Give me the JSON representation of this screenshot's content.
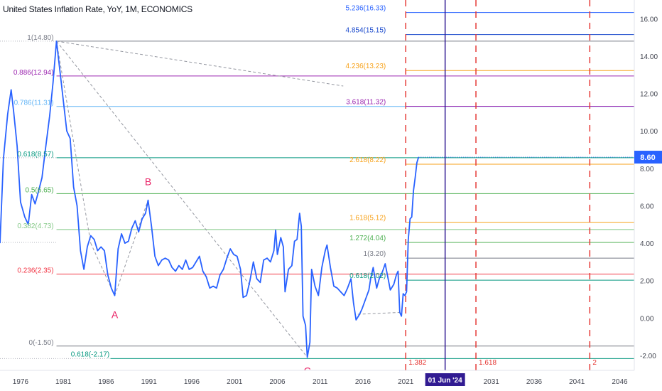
{
  "title": "United States Inflation Rate, YoY, 1M, ECONOMICS",
  "colors": {
    "series": "#2962ff",
    "axis_text": "#131722",
    "grid_text": "#434651",
    "dashed_red": "#e53935",
    "current_line": "#311b92",
    "price_badge_bg": "#2962ff",
    "date_badge_bg": "#311b92"
  },
  "current_price_label": "8.60",
  "current_date_label": "01 Jun '24",
  "chart_data": {
    "type": "line",
    "title": "United States Inflation Rate, YoY, 1M, ECONOMICS",
    "xlabel": "",
    "ylabel": "",
    "x_range": [
      1973.6,
      2047.7
    ],
    "y_range": [
      -2.8,
      17.0
    ],
    "x_ticks": [
      "1976",
      "1981",
      "1986",
      "1991",
      "1996",
      "2001",
      "2006",
      "2011",
      "2016",
      "2021",
      "2031",
      "2036",
      "2041",
      "2046"
    ],
    "y_ticks": [
      "16.00",
      "14.00",
      "12.00",
      "10.00",
      "8.00",
      "6.00",
      "4.00",
      "2.00",
      "0.00",
      "-2.00"
    ],
    "series": [
      {
        "values": [
          [
            1973.6,
            4.0
          ],
          [
            1974.0,
            8.5
          ],
          [
            1974.5,
            10.9
          ],
          [
            1974.9,
            12.2
          ],
          [
            1975.2,
            11.0
          ],
          [
            1975.6,
            9.2
          ],
          [
            1976.0,
            6.2
          ],
          [
            1976.5,
            5.4
          ],
          [
            1976.9,
            5.0
          ],
          [
            1977.3,
            6.6
          ],
          [
            1977.7,
            6.1
          ],
          [
            1978.0,
            6.6
          ],
          [
            1978.5,
            7.5
          ],
          [
            1978.9,
            9.0
          ],
          [
            1979.4,
            10.8
          ],
          [
            1979.8,
            12.6
          ],
          [
            1980.2,
            14.8
          ],
          [
            1980.7,
            12.8
          ],
          [
            1981.0,
            11.6
          ],
          [
            1981.4,
            10.0
          ],
          [
            1981.8,
            9.6
          ],
          [
            1982.2,
            7.0
          ],
          [
            1982.6,
            6.0
          ],
          [
            1983.0,
            3.6
          ],
          [
            1983.4,
            2.6
          ],
          [
            1983.8,
            3.8
          ],
          [
            1984.2,
            4.4
          ],
          [
            1984.6,
            4.2
          ],
          [
            1985.0,
            3.6
          ],
          [
            1985.4,
            3.8
          ],
          [
            1985.8,
            3.6
          ],
          [
            1986.2,
            2.3
          ],
          [
            1986.6,
            1.6
          ],
          [
            1987.0,
            1.2
          ],
          [
            1987.4,
            3.7
          ],
          [
            1987.8,
            4.5
          ],
          [
            1988.2,
            4.0
          ],
          [
            1988.6,
            4.1
          ],
          [
            1989.0,
            4.8
          ],
          [
            1989.4,
            5.2
          ],
          [
            1989.8,
            4.6
          ],
          [
            1990.2,
            5.3
          ],
          [
            1990.6,
            5.6
          ],
          [
            1990.9,
            6.3
          ],
          [
            1991.3,
            4.9
          ],
          [
            1991.7,
            3.3
          ],
          [
            1992.1,
            2.8
          ],
          [
            1992.5,
            3.1
          ],
          [
            1992.9,
            3.2
          ],
          [
            1993.3,
            3.1
          ],
          [
            1993.7,
            2.7
          ],
          [
            1994.1,
            2.5
          ],
          [
            1994.5,
            2.8
          ],
          [
            1994.9,
            2.6
          ],
          [
            1995.3,
            3.1
          ],
          [
            1995.7,
            2.6
          ],
          [
            1996.1,
            2.7
          ],
          [
            1996.5,
            3.0
          ],
          [
            1996.9,
            3.3
          ],
          [
            1997.3,
            2.5
          ],
          [
            1997.7,
            2.2
          ],
          [
            1998.1,
            1.6
          ],
          [
            1998.5,
            1.7
          ],
          [
            1998.9,
            1.6
          ],
          [
            1999.3,
            2.3
          ],
          [
            1999.7,
            2.6
          ],
          [
            2000.1,
            3.2
          ],
          [
            2000.5,
            3.7
          ],
          [
            2000.9,
            3.4
          ],
          [
            2001.3,
            3.3
          ],
          [
            2001.7,
            2.6
          ],
          [
            2002.0,
            1.1
          ],
          [
            2002.4,
            1.2
          ],
          [
            2002.8,
            2.0
          ],
          [
            2003.2,
            3.0
          ],
          [
            2003.6,
            2.1
          ],
          [
            2004.0,
            1.9
          ],
          [
            2004.4,
            3.1
          ],
          [
            2004.8,
            3.2
          ],
          [
            2005.2,
            3.0
          ],
          [
            2005.6,
            3.6
          ],
          [
            2005.8,
            4.7
          ],
          [
            2006.0,
            3.4
          ],
          [
            2006.4,
            4.3
          ],
          [
            2006.7,
            3.8
          ],
          [
            2006.9,
            1.4
          ],
          [
            2007.3,
            2.6
          ],
          [
            2007.7,
            2.8
          ],
          [
            2008.0,
            4.1
          ],
          [
            2008.3,
            4.2
          ],
          [
            2008.6,
            5.6
          ],
          [
            2008.8,
            4.9
          ],
          [
            2009.0,
            0.1
          ],
          [
            2009.3,
            -0.4
          ],
          [
            2009.5,
            -2.1
          ],
          [
            2009.8,
            -1.3
          ],
          [
            2010.0,
            2.6
          ],
          [
            2010.4,
            1.7
          ],
          [
            2010.8,
            1.2
          ],
          [
            2011.2,
            2.7
          ],
          [
            2011.6,
            3.6
          ],
          [
            2011.8,
            3.9
          ],
          [
            2012.2,
            2.7
          ],
          [
            2012.6,
            1.7
          ],
          [
            2013.0,
            1.6
          ],
          [
            2013.4,
            1.4
          ],
          [
            2013.8,
            1.2
          ],
          [
            2014.2,
            1.6
          ],
          [
            2014.6,
            2.1
          ],
          [
            2014.9,
            0.8
          ],
          [
            2015.2,
            -0.1
          ],
          [
            2015.6,
            0.2
          ],
          [
            2015.9,
            0.5
          ],
          [
            2016.3,
            1.0
          ],
          [
            2016.7,
            1.5
          ],
          [
            2016.9,
            2.1
          ],
          [
            2017.2,
            2.7
          ],
          [
            2017.6,
            1.6
          ],
          [
            2017.9,
            2.1
          ],
          [
            2018.3,
            2.5
          ],
          [
            2018.6,
            2.9
          ],
          [
            2018.9,
            2.2
          ],
          [
            2019.2,
            1.5
          ],
          [
            2019.6,
            1.8
          ],
          [
            2019.9,
            2.3
          ],
          [
            2020.1,
            2.5
          ],
          [
            2020.3,
            0.3
          ],
          [
            2020.5,
            0.1
          ],
          [
            2020.7,
            1.3
          ],
          [
            2020.9,
            1.2
          ],
          [
            2021.1,
            1.4
          ],
          [
            2021.3,
            4.2
          ],
          [
            2021.5,
            5.3
          ],
          [
            2021.7,
            5.4
          ],
          [
            2021.9,
            6.8
          ],
          [
            2022.1,
            7.5
          ],
          [
            2022.3,
            8.3
          ],
          [
            2022.5,
            8.6
          ]
        ]
      }
    ],
    "fib_levels": [
      {
        "label": "1(14.80)",
        "value": 14.8,
        "color": "#787b86"
      },
      {
        "label": "0.886(12.94)",
        "value": 12.94,
        "color": "#9c27b0"
      },
      {
        "label": "0.786(11.31)",
        "value": 11.31,
        "color": "#64b5f6"
      },
      {
        "label": "0.618(8.57)",
        "value": 8.57,
        "color": "#089981"
      },
      {
        "label": "0.5(6.65)",
        "value": 6.65,
        "color": "#4caf50"
      },
      {
        "label": "0.382(4.73)",
        "value": 4.73,
        "color": "#81c784"
      },
      {
        "label": "0.236(2.35)",
        "value": 2.35,
        "color": "#f23645"
      },
      {
        "label": "0(-1.50)",
        "value": -1.5,
        "color": "#787b86"
      }
    ],
    "ext_levels": [
      {
        "label": "5.236(16.33)",
        "value": 16.33,
        "color": "#2962ff"
      },
      {
        "label": "4.854(15.15)",
        "value": 15.15,
        "color": "#1848cc"
      },
      {
        "label": "4.236(13.23)",
        "value": 13.23,
        "color": "#f7a21b"
      },
      {
        "label": "3.618(11.32)",
        "value": 11.32,
        "color": "#9c27b0"
      },
      {
        "label": "2.618(8.22)",
        "value": 8.22,
        "color": "#f7a21b"
      },
      {
        "label": "1.618(5.12)",
        "value": 5.12,
        "color": "#f7a21b"
      },
      {
        "label": "1.272(4.04)",
        "value": 4.04,
        "color": "#4caf50"
      },
      {
        "label": "1(3.20)",
        "value": 3.2,
        "color": "#787b86"
      },
      {
        "label": "0.618(2.02)",
        "value": 2.02,
        "color": "#089981"
      }
    ],
    "ext2_level": {
      "label": "0.618(-2.17)",
      "value": -2.17,
      "color": "#089981"
    },
    "time_fibs": [
      {
        "label": "1.382",
        "x": 2021.0
      },
      {
        "label": "1.618",
        "x": 2029.2
      },
      {
        "label": "2",
        "x": 2042.5
      }
    ],
    "current_date_x": 2025.6,
    "wave_labels": [
      {
        "label": "A",
        "x": 1987.0,
        "y": 0.0,
        "color": "#e91e63"
      },
      {
        "label": "B",
        "x": 1990.9,
        "y": 7.1,
        "color": "#e91e63"
      },
      {
        "label": "C",
        "x": 2009.5,
        "y": -3.0,
        "color": "#e91e63"
      }
    ],
    "trend_lines": [
      {
        "from": [
          1980.2,
          14.8
        ],
        "to": [
          2013.7,
          12.4
        ]
      },
      {
        "from": [
          1980.2,
          14.8
        ],
        "to": [
          2009.5,
          -2.1
        ]
      },
      {
        "from": [
          1980.2,
          14.8
        ],
        "to": [
          1984.2,
          4.0
        ]
      },
      {
        "from": [
          1984.2,
          4.0
        ],
        "to": [
          1987.0,
          1.2
        ]
      },
      {
        "from": [
          1987.0,
          1.2
        ],
        "to": [
          1990.9,
          6.3
        ]
      },
      {
        "from": [
          2015.4,
          0.2
        ],
        "to": [
          2020.4,
          0.3
        ]
      }
    ]
  }
}
